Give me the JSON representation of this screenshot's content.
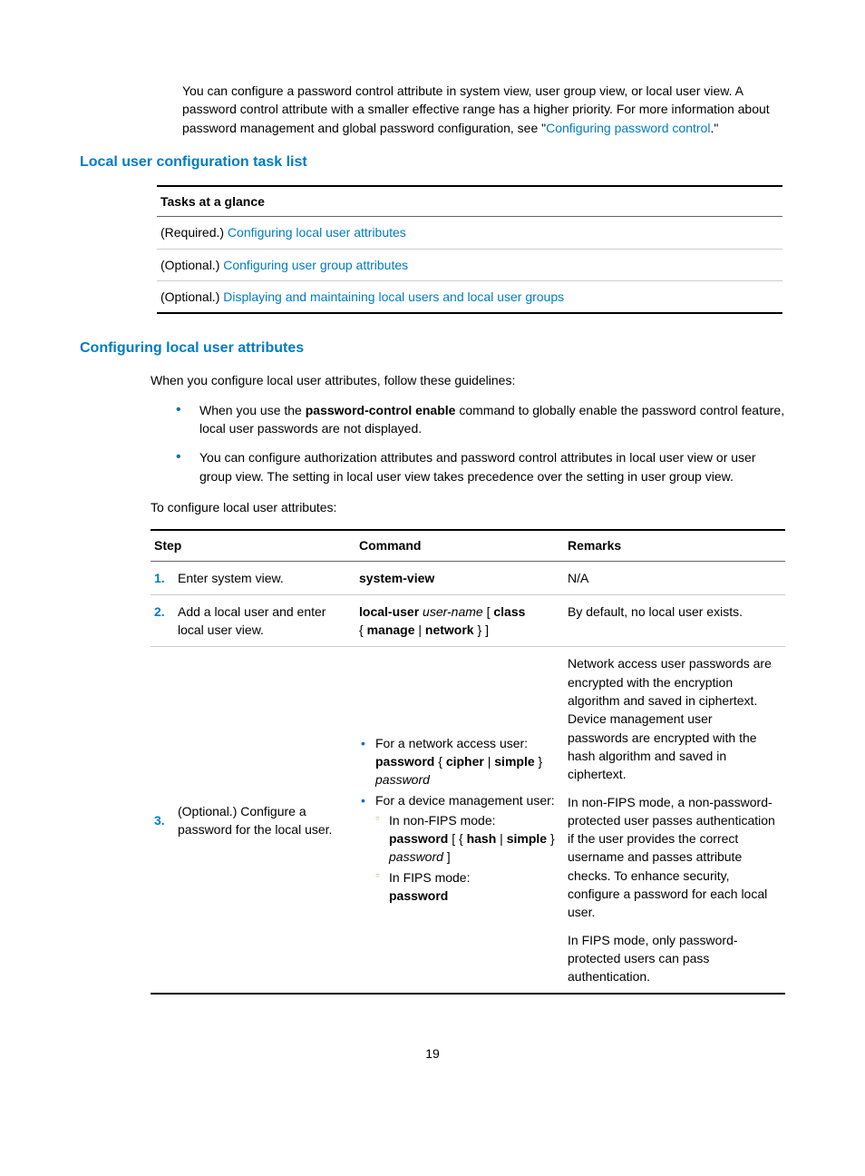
{
  "intro": {
    "text_before_link": "You can configure a password control attribute in system view, user group view, or local user view. A password control attribute with a smaller effective range has a higher priority. For more information about password management and global password configuration, see \"",
    "link_text": "Configuring password control",
    "text_after_link": ".\""
  },
  "section1": {
    "heading": "Local user configuration task list",
    "table_header": "Tasks at a glance",
    "rows": [
      {
        "prefix": "(Required.) ",
        "link": "Configuring local user attributes"
      },
      {
        "prefix": "(Optional.) ",
        "link": "Configuring user group attributes"
      },
      {
        "prefix": "(Optional.) ",
        "link": "Displaying and maintaining local users and local user groups"
      }
    ]
  },
  "section2": {
    "heading": "Configuring local user attributes",
    "intro": "When you configure local user attributes, follow these guidelines:",
    "bullet1_before": "When you use the ",
    "bullet1_bold": "password-control enable",
    "bullet1_after": " command to globally enable the password control feature, local user passwords are not displayed.",
    "bullet2": "You can configure authorization attributes and password control attributes in local user view or user group view. The setting in local user view takes precedence over the setting in user group view.",
    "lead": "To configure local user attributes:",
    "headers": {
      "step": "Step",
      "command": "Command",
      "remarks": "Remarks"
    },
    "row1": {
      "num": "1.",
      "step": "Enter system view.",
      "cmd": "system-view",
      "remarks": "N/A"
    },
    "row2": {
      "num": "2.",
      "step": "Add a local user and enter local user view.",
      "cmd_b1": "local-user",
      "cmd_i1": " user-name ",
      "cmd_p1": "[ ",
      "cmd_b2": "class",
      "cmd_p2": " { ",
      "cmd_b3": "manage",
      "cmd_p3": " | ",
      "cmd_b4": "network",
      "cmd_p4": " } ]",
      "remarks": "By default, no local user exists."
    },
    "row3": {
      "num": "3.",
      "step": "(Optional.) Configure a password for the local user.",
      "li1_label": "For a network access user:",
      "li1_b1": "password",
      "li1_p1": " { ",
      "li1_b2": "cipher",
      "li1_p2": " | ",
      "li1_b3": "simple",
      "li1_p3": " }",
      "li1_i1": "password",
      "li2_label": "For a device management user:",
      "sub1_label": "In non-FIPS mode:",
      "sub1_b1": "password",
      "sub1_p1": " [ { ",
      "sub1_b2": "hash",
      "sub1_p2": " | ",
      "sub1_b3": "simple",
      "sub1_p3": " }",
      "sub1_i1": "password",
      "sub1_p4": " ]",
      "sub2_label": "In FIPS mode:",
      "sub2_b1": "password",
      "remarks_p1": "Network access user passwords are encrypted with the encryption algorithm and saved in ciphertext. Device management user passwords are encrypted with the hash algorithm and saved in ciphertext.",
      "remarks_p2": "In non-FIPS mode, a non-password-protected user passes authentication if the user provides the correct username and passes attribute checks. To enhance security, configure a password for each local user.",
      "remarks_p3": "In FIPS mode, only password-protected users can pass authentication."
    }
  },
  "page_number": "19"
}
